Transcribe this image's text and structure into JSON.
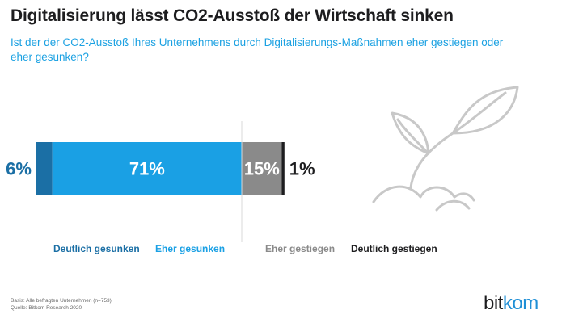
{
  "header": {
    "title": "Digitalisierung lässt CO2-Ausstoß der Wirtschaft sinken",
    "subtitle": "Ist der der CO2-Ausstoß Ihres Unternehmens durch Digitalisierungs-Maßnahmen eher gestiegen oder eher gesunken?"
  },
  "chart_data": {
    "type": "bar",
    "orientation": "horizontal-stacked",
    "categories": [
      "Deutlich gesunken",
      "Eher gesunken",
      "Eher gestiegen",
      "Deutlich gestiegen"
    ],
    "values": [
      6,
      71,
      15,
      1
    ],
    "labels": [
      "6%",
      "71%",
      "15%",
      "1%"
    ],
    "unit": "%",
    "colors": [
      "#1b6fa5",
      "#1aa0e4",
      "#8a8a8a",
      "#1d1d1f"
    ],
    "legend_placement": "bottom"
  },
  "footer": {
    "basis": "Basis: Alle befragten Unternehmen (n=753)",
    "source": "Quelle: Bitkom Research 2020"
  },
  "brand": {
    "logo_main": "bit",
    "logo_accent": "kom"
  },
  "icons": {
    "illustration": "seedling-icon"
  }
}
